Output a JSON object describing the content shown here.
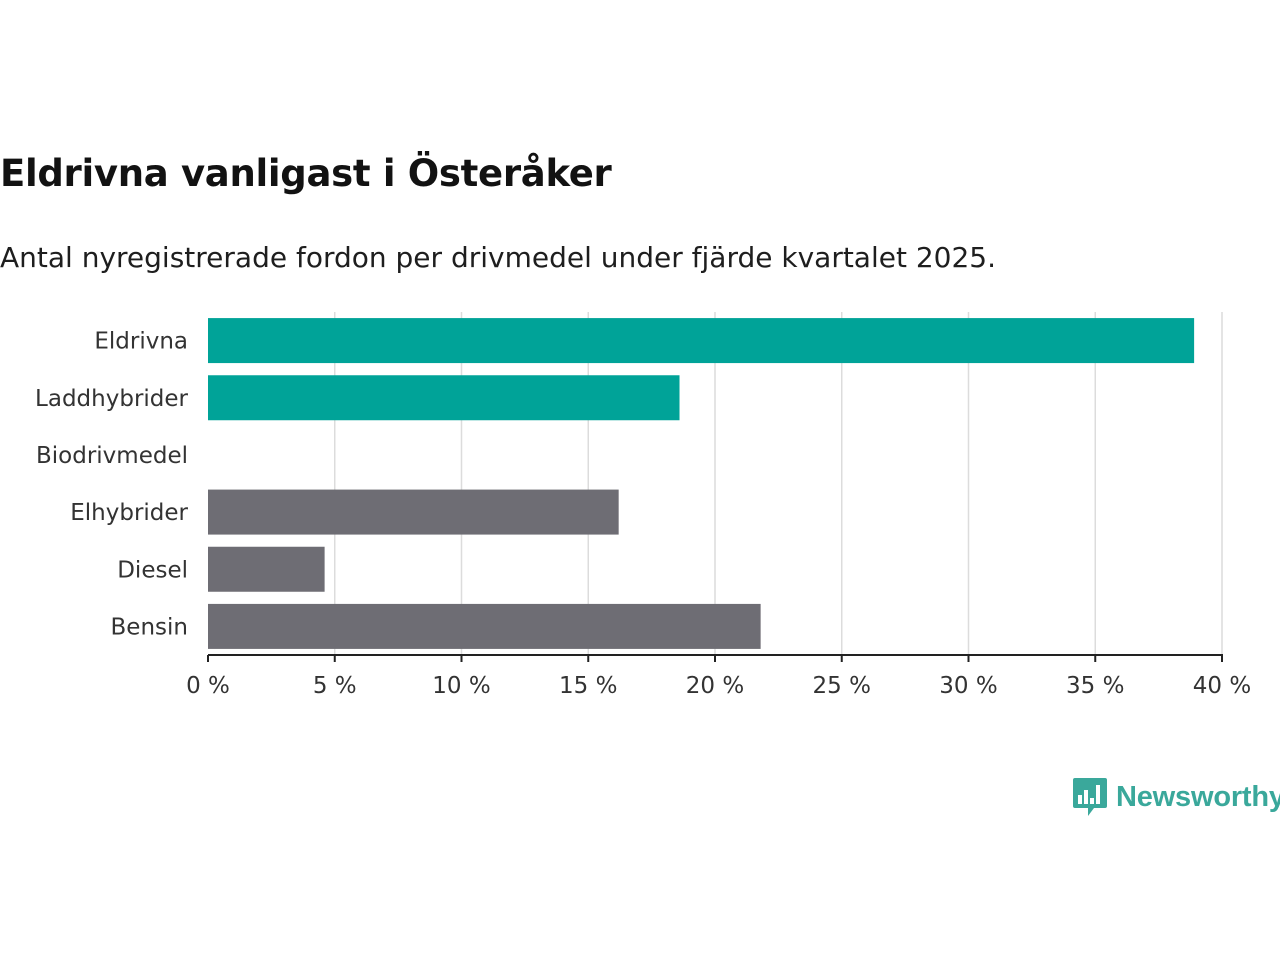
{
  "header": {
    "title": "Eldrivna vanligast i Österåker",
    "subtitle": "Antal nyregistrerade fordon per drivmedel under fjärde kvartalet 2025."
  },
  "brand": {
    "name": "Newsworthy",
    "color": "#3aa89b"
  },
  "chart_data": {
    "type": "bar",
    "orientation": "horizontal",
    "title": "Eldrivna vanligast i Österåker",
    "subtitle": "Antal nyregistrerade fordon per drivmedel under fjärde kvartalet 2025.",
    "categories": [
      "Eldrivna",
      "Laddhybrider",
      "Biodrivmedel",
      "Elhybrider",
      "Diesel",
      "Bensin"
    ],
    "values": [
      38.9,
      18.6,
      0,
      16.2,
      4.6,
      21.8
    ],
    "colors": [
      "#00a398",
      "#00a398",
      "#00a398",
      "#6e6d74",
      "#6e6d74",
      "#6e6d74"
    ],
    "xlim": [
      0,
      40
    ],
    "ticks": [
      0,
      5,
      10,
      15,
      20,
      25,
      30,
      35,
      40
    ],
    "tick_labels": [
      "0 %",
      "5 %",
      "10 %",
      "15 %",
      "20 %",
      "25 %",
      "30 %",
      "35 %",
      "40 %"
    ],
    "xlabel": "",
    "ylabel": "",
    "grid": true
  }
}
